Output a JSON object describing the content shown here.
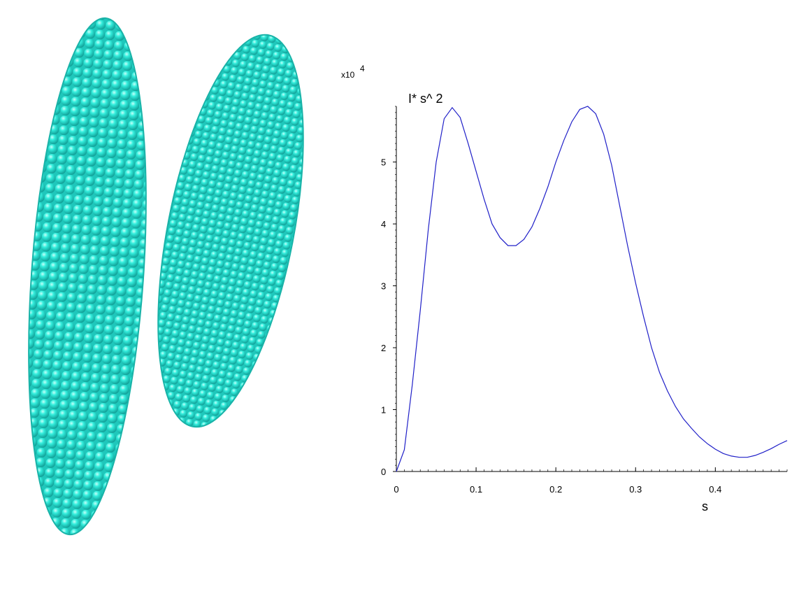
{
  "colors": {
    "bead": "#33eedd",
    "bead_dark": "#0f9a92",
    "curve": "#2020c8",
    "axis": "#000000"
  },
  "render": {
    "left": "molecular-bead-model-two-cylinders"
  },
  "chart_data": {
    "type": "line",
    "title": "",
    "xlabel": "s",
    "ylabel": "I* s^ 2",
    "y_multiplier": "x10",
    "y_multiplier_exp": "4",
    "xlim": [
      0,
      0.49
    ],
    "ylim": [
      0,
      5.9
    ],
    "x_ticks": [
      0,
      0.1,
      0.2,
      0.3,
      0.4
    ],
    "x_tick_labels": [
      "0",
      "0.1",
      "0.2",
      "0.3",
      "0.4"
    ],
    "y_ticks": [
      0,
      1,
      2,
      3,
      4,
      5
    ],
    "y_tick_labels": [
      "0",
      "1",
      "2",
      "3",
      "4",
      "5"
    ],
    "grid": false,
    "series": [
      {
        "x": [
          0,
          0.01,
          0.02,
          0.03,
          0.04,
          0.05,
          0.06,
          0.07,
          0.08,
          0.09,
          0.1,
          0.11,
          0.12,
          0.13,
          0.14,
          0.15,
          0.16,
          0.17,
          0.18,
          0.19,
          0.2,
          0.21,
          0.22,
          0.23,
          0.24,
          0.25,
          0.26,
          0.27,
          0.28,
          0.29,
          0.3,
          0.31,
          0.32,
          0.33,
          0.34,
          0.35,
          0.36,
          0.37,
          0.38,
          0.39,
          0.4,
          0.41,
          0.42,
          0.43,
          0.44,
          0.45,
          0.46,
          0.47,
          0.48,
          0.49
        ],
        "y": [
          0,
          0.35,
          1.4,
          2.6,
          3.9,
          5.0,
          5.7,
          5.88,
          5.72,
          5.3,
          4.85,
          4.4,
          4.0,
          3.78,
          3.65,
          3.65,
          3.75,
          3.95,
          4.25,
          4.6,
          5.0,
          5.35,
          5.65,
          5.85,
          5.9,
          5.78,
          5.45,
          4.95,
          4.3,
          3.65,
          3.05,
          2.5,
          2.0,
          1.6,
          1.3,
          1.05,
          0.85,
          0.7,
          0.56,
          0.45,
          0.36,
          0.29,
          0.25,
          0.23,
          0.23,
          0.26,
          0.31,
          0.37,
          0.44,
          0.5
        ]
      }
    ]
  }
}
